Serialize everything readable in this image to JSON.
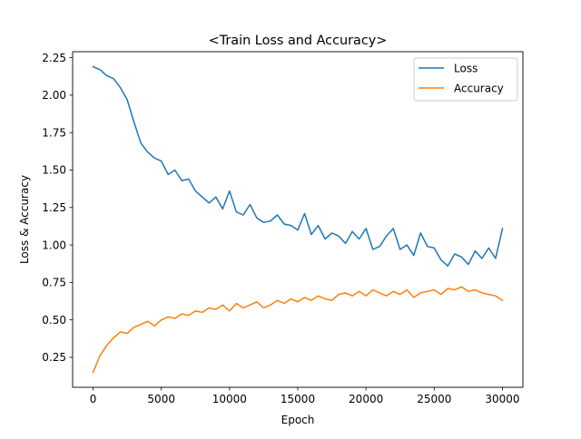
{
  "chart_data": {
    "type": "line",
    "title": "<Train Loss and Accuracy>",
    "xlabel": "Epoch",
    "ylabel": "Loss & Accuracy",
    "xlim": [
      -1500,
      31500
    ],
    "ylim": [
      0.05,
      2.29
    ],
    "xticks": [
      {
        "value": 0,
        "label": "0"
      },
      {
        "value": 5000,
        "label": "5000"
      },
      {
        "value": 10000,
        "label": "10000"
      },
      {
        "value": 15000,
        "label": "15000"
      },
      {
        "value": 20000,
        "label": "20000"
      },
      {
        "value": 25000,
        "label": "25000"
      },
      {
        "value": 30000,
        "label": "30000"
      }
    ],
    "yticks": [
      {
        "value": 0.25,
        "label": "0.25"
      },
      {
        "value": 0.5,
        "label": "0.50"
      },
      {
        "value": 0.75,
        "label": "0.75"
      },
      {
        "value": 1.0,
        "label": "1.00"
      },
      {
        "value": 1.25,
        "label": "1.25"
      },
      {
        "value": 1.5,
        "label": "1.50"
      },
      {
        "value": 1.75,
        "label": "1.75"
      },
      {
        "value": 2.0,
        "label": "2.00"
      },
      {
        "value": 2.25,
        "label": "2.25"
      }
    ],
    "grid": false,
    "legend": {
      "placement": "top-right"
    },
    "series": [
      {
        "name": "Loss",
        "color": "#1f77b4",
        "x": [
          0,
          500,
          1000,
          1500,
          2000,
          2500,
          3000,
          3500,
          4000,
          4500,
          5000,
          5500,
          6000,
          6500,
          7000,
          7500,
          8000,
          8500,
          9000,
          9500,
          10000,
          10500,
          11000,
          11500,
          12000,
          12500,
          13000,
          13500,
          14000,
          14500,
          15000,
          15500,
          16000,
          16500,
          17000,
          17500,
          18000,
          18500,
          19000,
          19500,
          20000,
          20500,
          21000,
          21500,
          22000,
          22500,
          23000,
          23500,
          24000,
          24500,
          25000,
          25500,
          26000,
          26500,
          27000,
          27500,
          28000,
          28500,
          29000,
          29500,
          30000
        ],
        "y": [
          2.19,
          2.17,
          2.13,
          2.11,
          2.05,
          1.97,
          1.82,
          1.68,
          1.62,
          1.58,
          1.56,
          1.47,
          1.5,
          1.43,
          1.44,
          1.36,
          1.32,
          1.28,
          1.32,
          1.24,
          1.36,
          1.22,
          1.2,
          1.27,
          1.18,
          1.15,
          1.16,
          1.2,
          1.14,
          1.13,
          1.1,
          1.21,
          1.07,
          1.13,
          1.04,
          1.08,
          1.06,
          1.01,
          1.09,
          1.04,
          1.11,
          0.97,
          0.99,
          1.06,
          1.11,
          0.97,
          1.0,
          0.93,
          1.08,
          0.99,
          0.98,
          0.9,
          0.86,
          0.94,
          0.92,
          0.87,
          0.96,
          0.91,
          0.98,
          0.91,
          1.11
        ]
      },
      {
        "name": "Accuracy",
        "color": "#ff7f0e",
        "x": [
          0,
          500,
          1000,
          1500,
          2000,
          2500,
          3000,
          3500,
          4000,
          4500,
          5000,
          5500,
          6000,
          6500,
          7000,
          7500,
          8000,
          8500,
          9000,
          9500,
          10000,
          10500,
          11000,
          11500,
          12000,
          12500,
          13000,
          13500,
          14000,
          14500,
          15000,
          15500,
          16000,
          16500,
          17000,
          17500,
          18000,
          18500,
          19000,
          19500,
          20000,
          20500,
          21000,
          21500,
          22000,
          22500,
          23000,
          23500,
          24000,
          24500,
          25000,
          25500,
          26000,
          26500,
          27000,
          27500,
          28000,
          28500,
          29000,
          29500,
          30000
        ],
        "y": [
          0.15,
          0.26,
          0.33,
          0.38,
          0.42,
          0.41,
          0.45,
          0.47,
          0.49,
          0.46,
          0.5,
          0.52,
          0.51,
          0.54,
          0.53,
          0.56,
          0.55,
          0.58,
          0.57,
          0.6,
          0.56,
          0.61,
          0.58,
          0.6,
          0.62,
          0.58,
          0.6,
          0.63,
          0.61,
          0.64,
          0.62,
          0.65,
          0.63,
          0.66,
          0.64,
          0.63,
          0.67,
          0.68,
          0.66,
          0.69,
          0.66,
          0.7,
          0.68,
          0.66,
          0.69,
          0.67,
          0.7,
          0.65,
          0.68,
          0.69,
          0.7,
          0.67,
          0.71,
          0.7,
          0.72,
          0.69,
          0.7,
          0.68,
          0.67,
          0.66,
          0.63
        ]
      }
    ]
  }
}
